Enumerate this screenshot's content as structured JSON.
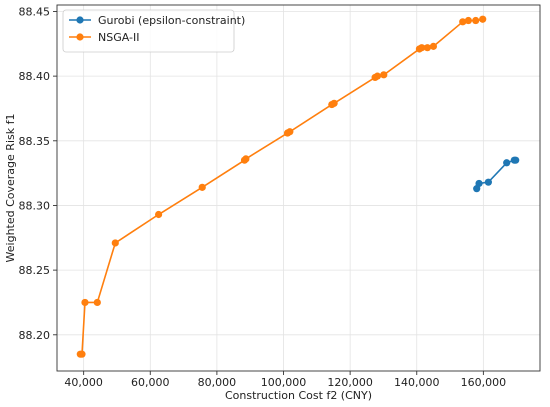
{
  "chart_data": {
    "type": "line",
    "title": "",
    "xlabel": "Construction Cost f2 (CNY)",
    "ylabel": "Weighted Coverage Risk f1",
    "xlim": [
      32000,
      177000
    ],
    "ylim": [
      88.172,
      88.455
    ],
    "xticks": [
      40000,
      60000,
      80000,
      100000,
      120000,
      140000,
      160000
    ],
    "xtick_labels": [
      "40,000",
      "60,000",
      "80,000",
      "100,000",
      "120,000",
      "140,000",
      "160,000"
    ],
    "yticks": [
      88.2,
      88.25,
      88.3,
      88.35,
      88.4,
      88.45
    ],
    "ytick_labels": [
      "88.20",
      "88.25",
      "88.30",
      "88.35",
      "88.40",
      "88.45"
    ],
    "grid": true,
    "legend_position": "top-left",
    "series": [
      {
        "name": "Gurobi (epsilon-constraint)",
        "color": "#1f77b4",
        "points": [
          [
            158000,
            88.313
          ],
          [
            158700,
            88.317
          ],
          [
            161500,
            88.318
          ],
          [
            167000,
            88.333
          ],
          [
            169300,
            88.335
          ],
          [
            169700,
            88.335
          ]
        ]
      },
      {
        "name": "NSGA-II",
        "color": "#ff7f0e",
        "points": [
          [
            39000,
            88.185
          ],
          [
            39500,
            88.185
          ],
          [
            40400,
            88.225
          ],
          [
            44100,
            88.225
          ],
          [
            49500,
            88.271
          ],
          [
            62500,
            88.293
          ],
          [
            75600,
            88.314
          ],
          [
            88300,
            88.335
          ],
          [
            88700,
            88.336
          ],
          [
            101200,
            88.356
          ],
          [
            101900,
            88.357
          ],
          [
            114500,
            88.378
          ],
          [
            115200,
            88.379
          ],
          [
            127500,
            88.399
          ],
          [
            128200,
            88.4
          ],
          [
            130100,
            88.401
          ],
          [
            140800,
            88.421
          ],
          [
            141500,
            88.422
          ],
          [
            143200,
            88.422
          ],
          [
            145000,
            88.423
          ],
          [
            153800,
            88.442
          ],
          [
            155500,
            88.443
          ],
          [
            157700,
            88.443
          ],
          [
            159800,
            88.444
          ]
        ]
      }
    ]
  }
}
